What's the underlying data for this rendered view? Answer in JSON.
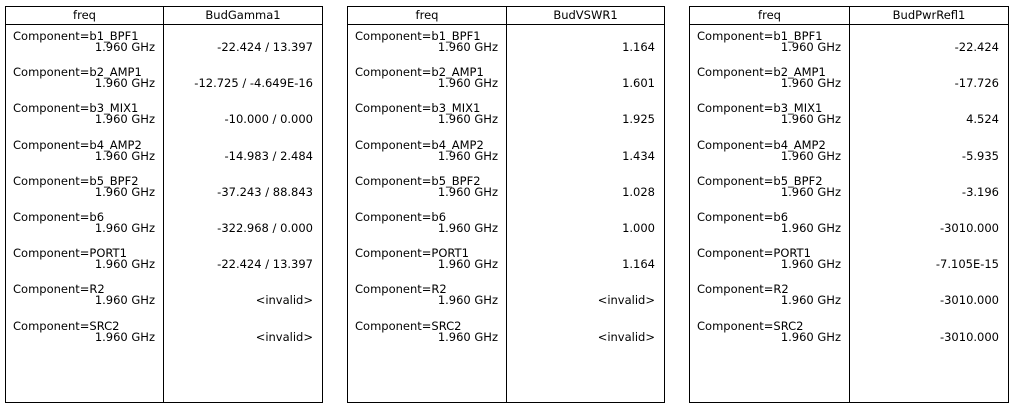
{
  "tables": [
    {
      "headers": [
        "freq",
        "BudGamma1"
      ],
      "rows": [
        {
          "component": "Component=b1_BPF1",
          "freq": "1.960 GHz",
          "value": "-22.424 / 13.397"
        },
        {
          "component": "Component=b2_AMP1",
          "freq": "1.960 GHz",
          "value": "-12.725 / -4.649E-16"
        },
        {
          "component": "Component=b3_MIX1",
          "freq": "1.960 GHz",
          "value": "-10.000 / 0.000"
        },
        {
          "component": "Component=b4_AMP2",
          "freq": "1.960 GHz",
          "value": "-14.983 / 2.484"
        },
        {
          "component": "Component=b5_BPF2",
          "freq": "1.960 GHz",
          "value": "-37.243 / 88.843"
        },
        {
          "component": "Component=b6",
          "freq": "1.960 GHz",
          "value": "-322.968 / 0.000"
        },
        {
          "component": "Component=PORT1",
          "freq": "1.960 GHz",
          "value": "-22.424 / 13.397"
        },
        {
          "component": "Component=R2",
          "freq": "1.960 GHz",
          "value": "<invalid>"
        },
        {
          "component": "Component=SRC2",
          "freq": "1.960 GHz",
          "value": "<invalid>"
        }
      ]
    },
    {
      "headers": [
        "freq",
        "BudVSWR1"
      ],
      "rows": [
        {
          "component": "Component=b1_BPF1",
          "freq": "1.960 GHz",
          "value": "1.164"
        },
        {
          "component": "Component=b2_AMP1",
          "freq": "1.960 GHz",
          "value": "1.601"
        },
        {
          "component": "Component=b3_MIX1",
          "freq": "1.960 GHz",
          "value": "1.925"
        },
        {
          "component": "Component=b4_AMP2",
          "freq": "1.960 GHz",
          "value": "1.434"
        },
        {
          "component": "Component=b5_BPF2",
          "freq": "1.960 GHz",
          "value": "1.028"
        },
        {
          "component": "Component=b6",
          "freq": "1.960 GHz",
          "value": "1.000"
        },
        {
          "component": "Component=PORT1",
          "freq": "1.960 GHz",
          "value": "1.164"
        },
        {
          "component": "Component=R2",
          "freq": "1.960 GHz",
          "value": "<invalid>"
        },
        {
          "component": "Component=SRC2",
          "freq": "1.960 GHz",
          "value": "<invalid>"
        }
      ]
    },
    {
      "headers": [
        "freq",
        "BudPwrRefl1"
      ],
      "rows": [
        {
          "component": "Component=b1_BPF1",
          "freq": "1.960 GHz",
          "value": "-22.424"
        },
        {
          "component": "Component=b2_AMP1",
          "freq": "1.960 GHz",
          "value": "-17.726"
        },
        {
          "component": "Component=b3_MIX1",
          "freq": "1.960 GHz",
          "value": "4.524"
        },
        {
          "component": "Component=b4_AMP2",
          "freq": "1.960 GHz",
          "value": "-5.935"
        },
        {
          "component": "Component=b5_BPF2",
          "freq": "1.960 GHz",
          "value": "-3.196"
        },
        {
          "component": "Component=b6",
          "freq": "1.960 GHz",
          "value": "-3010.000"
        },
        {
          "component": "Component=PORT1",
          "freq": "1.960 GHz",
          "value": "-7.105E-15"
        },
        {
          "component": "Component=R2",
          "freq": "1.960 GHz",
          "value": "-3010.000"
        },
        {
          "component": "Component=SRC2",
          "freq": "1.960 GHz",
          "value": "-3010.000"
        }
      ]
    }
  ]
}
